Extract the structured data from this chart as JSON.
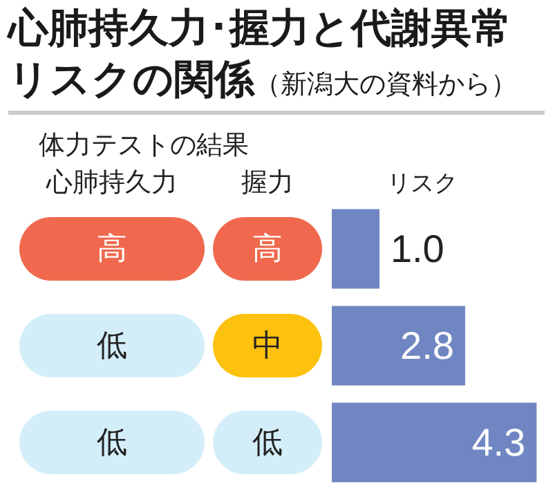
{
  "chart_data": {
    "type": "bar",
    "orientation": "horizontal",
    "title": "心肺持久力･握力と代謝異常リスクの関係",
    "subtitle": "（新潟大の資料から）",
    "xlabel": "リスク",
    "categories": [
      "高",
      "低",
      "低"
    ],
    "values": [
      1.0,
      2.8,
      4.3
    ],
    "value_labels": [
      "1.0",
      "2.8",
      "4.3"
    ],
    "color": "#6f86c2",
    "annotations": [
      "体力テストの結果",
      "心肺持久力",
      "握力",
      "高",
      "中",
      "低"
    ]
  }
}
